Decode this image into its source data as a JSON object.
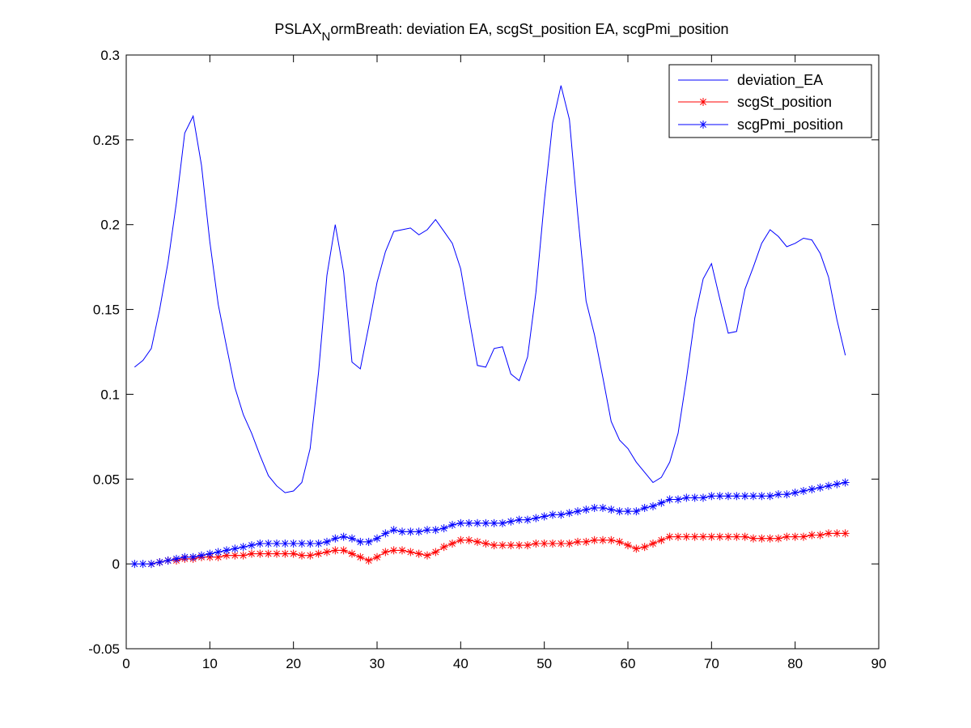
{
  "chart_data": {
    "type": "line",
    "title": {
      "main": "PSLAX",
      "subscript": "N",
      "rest": "ormBreath: deviation EA, scgSt_position EA, scgPmi_position"
    },
    "xlabel": "",
    "ylabel": "",
    "xlim": [
      0,
      90
    ],
    "ylim": [
      -0.05,
      0.3
    ],
    "xticks": [
      0,
      10,
      20,
      30,
      40,
      50,
      60,
      70,
      80,
      90
    ],
    "xtick_labels": [
      "0",
      "10",
      "20",
      "30",
      "40",
      "50",
      "60",
      "70",
      "80",
      "90"
    ],
    "yticks": [
      -0.05,
      0,
      0.05,
      0.1,
      0.15,
      0.2,
      0.25,
      0.3
    ],
    "ytick_labels": [
      "-0.05",
      "0",
      "0.05",
      "0.1",
      "0.15",
      "0.2",
      "0.25",
      "0.3"
    ],
    "grid": false,
    "legend_position": "top-right",
    "series": [
      {
        "name": "deviation_EA",
        "color": "#0000ff",
        "marker": "none",
        "x": [
          1,
          2,
          3,
          4,
          5,
          6,
          7,
          8,
          9,
          10,
          11,
          12,
          13,
          14,
          15,
          16,
          17,
          18,
          19,
          20,
          21,
          22,
          23,
          24,
          25,
          26,
          27,
          28,
          29,
          30,
          31,
          32,
          33,
          34,
          35,
          36,
          37,
          38,
          39,
          40,
          41,
          42,
          43,
          44,
          45,
          46,
          47,
          48,
          49,
          50,
          51,
          52,
          53,
          54,
          55,
          56,
          57,
          58,
          59,
          60,
          61,
          62,
          63,
          64,
          65,
          66,
          67,
          68,
          69,
          70,
          71,
          72,
          73,
          74,
          75,
          76,
          77,
          78,
          79,
          80,
          81,
          82,
          83,
          84,
          85,
          86
        ],
        "values": [
          0.116,
          0.12,
          0.127,
          0.15,
          0.178,
          0.213,
          0.254,
          0.264,
          0.235,
          0.19,
          0.153,
          0.128,
          0.104,
          0.088,
          0.077,
          0.064,
          0.052,
          0.046,
          0.042,
          0.043,
          0.048,
          0.068,
          0.113,
          0.17,
          0.2,
          0.172,
          0.119,
          0.115,
          0.14,
          0.166,
          0.184,
          0.196,
          0.197,
          0.198,
          0.194,
          0.197,
          0.203,
          0.196,
          0.189,
          0.174,
          0.145,
          0.117,
          0.116,
          0.127,
          0.128,
          0.112,
          0.108,
          0.122,
          0.16,
          0.214,
          0.26,
          0.282,
          0.262,
          0.206,
          0.155,
          0.135,
          0.11,
          0.084,
          0.073,
          0.068,
          0.06,
          0.054,
          0.048,
          0.051,
          0.06,
          0.077,
          0.109,
          0.145,
          0.168,
          0.177,
          0.156,
          0.136,
          0.137,
          0.162,
          0.175,
          0.189,
          0.197,
          0.193,
          0.187,
          0.189,
          0.192,
          0.191,
          0.183,
          0.169,
          0.144,
          0.123
        ]
      },
      {
        "name": "scgSt_position",
        "color": "#ff0000",
        "marker": "asterisk",
        "x": [
          3,
          4,
          5,
          6,
          7,
          8,
          9,
          10,
          11,
          12,
          13,
          14,
          15,
          16,
          17,
          18,
          19,
          20,
          21,
          22,
          23,
          24,
          25,
          26,
          27,
          28,
          29,
          30,
          31,
          32,
          33,
          34,
          35,
          36,
          37,
          38,
          39,
          40,
          41,
          42,
          43,
          44,
          45,
          46,
          47,
          48,
          49,
          50,
          51,
          52,
          53,
          54,
          55,
          56,
          57,
          58,
          59,
          60,
          61,
          62,
          63,
          64,
          65,
          66,
          67,
          68,
          69,
          70,
          71,
          72,
          73,
          74,
          75,
          76,
          77,
          78,
          79,
          80,
          81,
          82,
          83,
          84,
          85,
          86
        ],
        "values": [
          0.0,
          0.001,
          0.002,
          0.002,
          0.003,
          0.003,
          0.004,
          0.004,
          0.004,
          0.005,
          0.005,
          0.005,
          0.006,
          0.006,
          0.006,
          0.006,
          0.006,
          0.006,
          0.005,
          0.005,
          0.006,
          0.007,
          0.008,
          0.008,
          0.006,
          0.004,
          0.002,
          0.004,
          0.007,
          0.008,
          0.008,
          0.007,
          0.006,
          0.005,
          0.007,
          0.01,
          0.012,
          0.014,
          0.014,
          0.013,
          0.012,
          0.011,
          0.011,
          0.011,
          0.011,
          0.011,
          0.012,
          0.012,
          0.012,
          0.012,
          0.012,
          0.013,
          0.013,
          0.014,
          0.014,
          0.014,
          0.013,
          0.011,
          0.009,
          0.01,
          0.012,
          0.014,
          0.016,
          0.016,
          0.016,
          0.016,
          0.016,
          0.016,
          0.016,
          0.016,
          0.016,
          0.016,
          0.015,
          0.015,
          0.015,
          0.015,
          0.016,
          0.016,
          0.016,
          0.017,
          0.017,
          0.018,
          0.018,
          0.018
        ]
      },
      {
        "name": "scgPmi_position",
        "color": "#0000ff",
        "marker": "asterisk",
        "x": [
          1,
          2,
          3,
          4,
          5,
          6,
          7,
          8,
          9,
          10,
          11,
          12,
          13,
          14,
          15,
          16,
          17,
          18,
          19,
          20,
          21,
          22,
          23,
          24,
          25,
          26,
          27,
          28,
          29,
          30,
          31,
          32,
          33,
          34,
          35,
          36,
          37,
          38,
          39,
          40,
          41,
          42,
          43,
          44,
          45,
          46,
          47,
          48,
          49,
          50,
          51,
          52,
          53,
          54,
          55,
          56,
          57,
          58,
          59,
          60,
          61,
          62,
          63,
          64,
          65,
          66,
          67,
          68,
          69,
          70,
          71,
          72,
          73,
          74,
          75,
          76,
          77,
          78,
          79,
          80,
          81,
          82,
          83,
          84,
          85,
          86
        ],
        "values": [
          0.0,
          0.0,
          0.0,
          0.001,
          0.002,
          0.003,
          0.004,
          0.004,
          0.005,
          0.006,
          0.007,
          0.008,
          0.009,
          0.01,
          0.011,
          0.012,
          0.012,
          0.012,
          0.012,
          0.012,
          0.012,
          0.012,
          0.012,
          0.013,
          0.015,
          0.016,
          0.015,
          0.013,
          0.013,
          0.015,
          0.018,
          0.02,
          0.019,
          0.019,
          0.019,
          0.02,
          0.02,
          0.021,
          0.023,
          0.024,
          0.024,
          0.024,
          0.024,
          0.024,
          0.024,
          0.025,
          0.026,
          0.026,
          0.027,
          0.028,
          0.029,
          0.029,
          0.03,
          0.031,
          0.032,
          0.033,
          0.033,
          0.032,
          0.031,
          0.031,
          0.031,
          0.033,
          0.034,
          0.036,
          0.038,
          0.038,
          0.039,
          0.039,
          0.039,
          0.04,
          0.04,
          0.04,
          0.04,
          0.04,
          0.04,
          0.04,
          0.04,
          0.041,
          0.041,
          0.042,
          0.043,
          0.044,
          0.045,
          0.046,
          0.047,
          0.048
        ]
      }
    ]
  }
}
